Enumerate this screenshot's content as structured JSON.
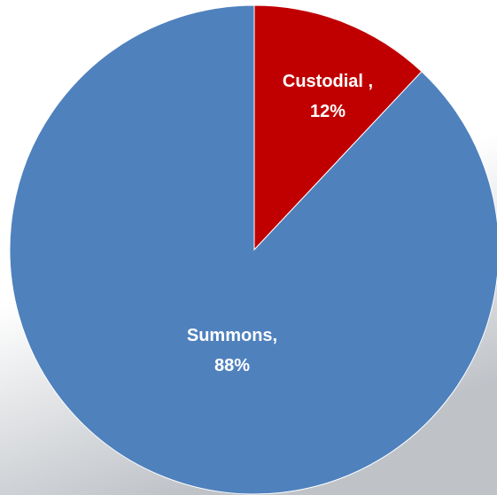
{
  "chart_data": {
    "type": "pie",
    "title": "",
    "start_angle_deg": 0,
    "direction": "clockwise",
    "slices": [
      {
        "label": "Custodial ,",
        "value": 12,
        "value_text": "12%",
        "color": "#C00000"
      },
      {
        "label": "Summons,",
        "value": 88,
        "value_text": "88%",
        "color": "#4F81BD"
      }
    ],
    "legend": "none"
  },
  "colors": {
    "background_top": "#ffffff",
    "background_bottom": "#bfc3c8",
    "slice_border": "#ffffff"
  }
}
